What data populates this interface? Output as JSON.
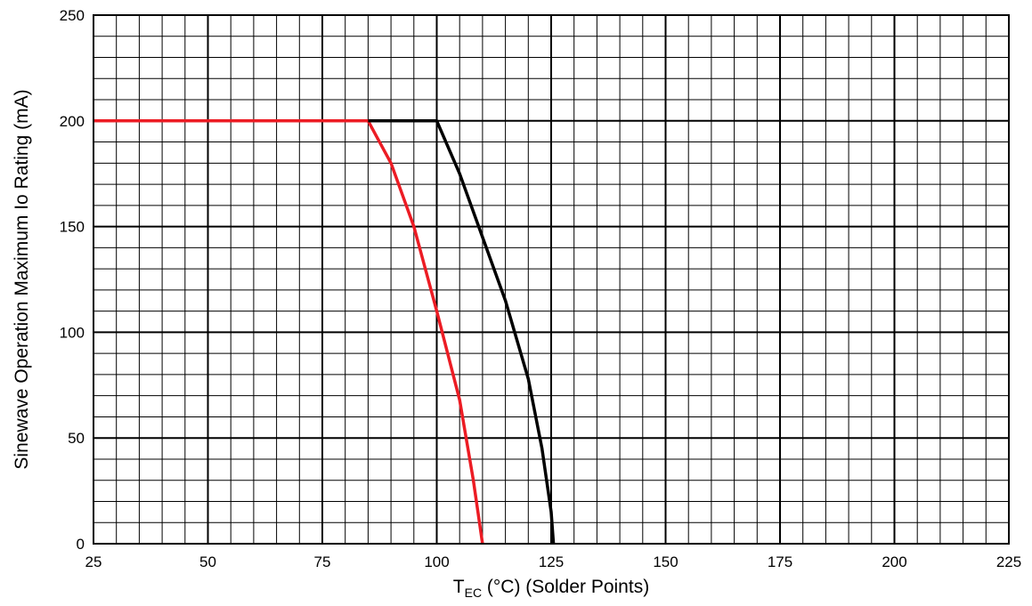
{
  "chart_data": {
    "type": "line",
    "title": "",
    "xlabel": {
      "main": "T",
      "sub": "EC",
      "rest": " (°C)  (Solder Points)"
    },
    "ylabel": "Sinewave Operation Maximum Io Rating (mA)",
    "xlim": [
      25,
      225
    ],
    "ylim": [
      0,
      250
    ],
    "x_ticks": [
      25,
      50,
      75,
      100,
      125,
      150,
      175,
      200,
      225
    ],
    "y_ticks": [
      0,
      50,
      100,
      150,
      200,
      250
    ],
    "minor_x_step": 5,
    "minor_y_step": 10,
    "grid": true,
    "legend": "none",
    "series": [
      {
        "color": "#ec1c24",
        "points": [
          [
            25,
            200
          ],
          [
            85,
            200
          ],
          [
            90,
            180
          ],
          [
            95,
            150
          ],
          [
            100,
            110
          ],
          [
            105,
            68
          ],
          [
            108,
            30
          ],
          [
            110,
            0
          ]
        ]
      },
      {
        "color": "#000000",
        "points": [
          [
            85,
            200
          ],
          [
            100,
            200
          ],
          [
            105,
            175
          ],
          [
            110,
            145
          ],
          [
            115,
            115
          ],
          [
            120,
            78
          ],
          [
            123,
            45
          ],
          [
            125,
            15
          ],
          [
            125.5,
            0
          ]
        ]
      }
    ]
  }
}
